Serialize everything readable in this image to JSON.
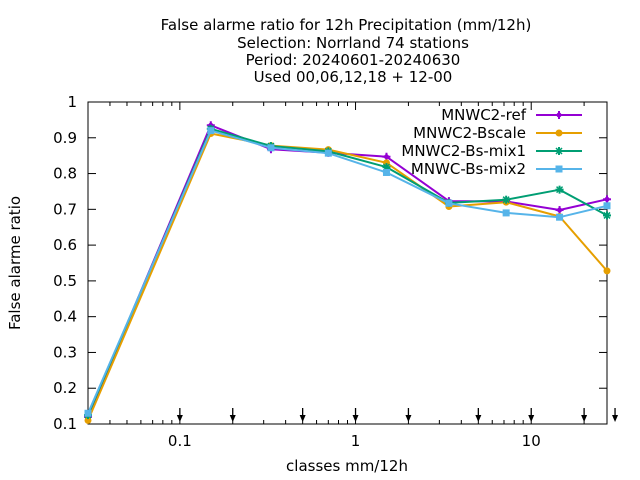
{
  "chart_data": {
    "type": "line",
    "title_lines": [
      "False alarme ratio  for 12h Precipitation (mm/12h)",
      "Selection: Norrland     74 stations",
      "Period: 20240601-20240630",
      "Used 00,06,12,18 + 12-00"
    ],
    "xlabel": "classes mm/12h",
    "ylabel": "False alarme ratio",
    "x_scale": "log",
    "xlim": [
      0.03,
      27
    ],
    "ylim": [
      0.1,
      1.0
    ],
    "x_ticks": [
      {
        "value": 0.1,
        "label": "0.1"
      },
      {
        "value": 1,
        "label": "1"
      },
      {
        "value": 10,
        "label": "10"
      }
    ],
    "y_ticks": [
      {
        "value": 0.1,
        "label": "0.1"
      },
      {
        "value": 0.2,
        "label": "0.2"
      },
      {
        "value": 0.3,
        "label": "0.3"
      },
      {
        "value": 0.4,
        "label": "0.4"
      },
      {
        "value": 0.5,
        "label": "0.5"
      },
      {
        "value": 0.6,
        "label": "0.6"
      },
      {
        "value": 0.7,
        "label": "0.7"
      },
      {
        "value": 0.8,
        "label": "0.8"
      },
      {
        "value": 0.9,
        "label": "0.9"
      },
      {
        "value": 1.0,
        "label": "1"
      }
    ],
    "class_arrows": [
      0.1,
      0.2,
      0.5,
      1,
      2,
      5,
      10,
      20,
      30
    ],
    "legend_position": "top-right",
    "grid": false,
    "x": [
      0.03,
      0.15,
      0.33,
      0.7,
      1.5,
      3.4,
      7.2,
      14.5,
      27
    ],
    "series": [
      {
        "name": "MNWC2-ref",
        "color": "#9400d3",
        "marker": "plus",
        "values": [
          0.12,
          0.935,
          0.868,
          0.858,
          0.847,
          0.723,
          0.722,
          0.698,
          0.728
        ]
      },
      {
        "name": "MNWC2-Bscale",
        "color": "#e69f00",
        "marker": "circle",
        "values": [
          0.11,
          0.912,
          0.878,
          0.867,
          0.83,
          0.708,
          0.72,
          0.68,
          0.528
        ]
      },
      {
        "name": "MNWC2-Bs-mix1",
        "color": "#009e73",
        "marker": "star",
        "values": [
          0.125,
          0.925,
          0.877,
          0.862,
          0.818,
          0.718,
          0.727,
          0.755,
          0.683
        ]
      },
      {
        "name": "MNWC-Bs-mix2",
        "color": "#56b4e9",
        "marker": "square",
        "values": [
          0.13,
          0.92,
          0.872,
          0.857,
          0.803,
          0.717,
          0.69,
          0.678,
          0.71
        ]
      }
    ]
  }
}
